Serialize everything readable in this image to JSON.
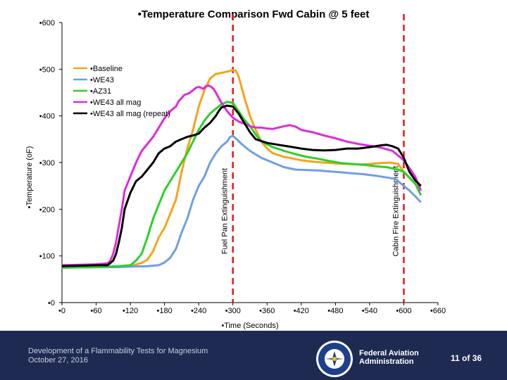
{
  "chart_data": {
    "type": "line",
    "title": "•Temperature Comparison Fwd Cabin @ 5 feet",
    "xlabel": "•Time (Seconds)",
    "ylabel": "•Temperature (oF)",
    "xlim": [
      0,
      660
    ],
    "ylim": [
      0,
      600
    ],
    "x_ticks": [
      0,
      60,
      120,
      180,
      240,
      300,
      360,
      420,
      480,
      540,
      600,
      660
    ],
    "x_tick_labels": [
      "•0",
      "•60",
      "•120",
      "•180",
      "•240",
      "•300",
      "•360",
      "•420",
      "•480",
      "•540",
      "•600",
      "•660"
    ],
    "y_ticks": [
      0,
      100,
      200,
      300,
      400,
      500,
      600
    ],
    "y_tick_labels": [
      "•0",
      "•100",
      "•200",
      "•300",
      "•400",
      "•500",
      "•600"
    ],
    "grid": false,
    "legend_position": "top-left",
    "series": [
      {
        "name": "•Baseline",
        "color": "#F7A21B",
        "points": [
          [
            0,
            75
          ],
          [
            60,
            76
          ],
          [
            100,
            78
          ],
          [
            125,
            80
          ],
          [
            140,
            85
          ],
          [
            150,
            92
          ],
          [
            160,
            110
          ],
          [
            170,
            140
          ],
          [
            180,
            160
          ],
          [
            190,
            190
          ],
          [
            200,
            220
          ],
          [
            210,
            280
          ],
          [
            220,
            330
          ],
          [
            230,
            370
          ],
          [
            240,
            420
          ],
          [
            250,
            455
          ],
          [
            260,
            480
          ],
          [
            270,
            490
          ],
          [
            280,
            492
          ],
          [
            290,
            495
          ],
          [
            300,
            498
          ],
          [
            305,
            497
          ],
          [
            310,
            485
          ],
          [
            320,
            440
          ],
          [
            330,
            400
          ],
          [
            340,
            370
          ],
          [
            350,
            345
          ],
          [
            360,
            330
          ],
          [
            370,
            320
          ],
          [
            380,
            316
          ],
          [
            390,
            312
          ],
          [
            400,
            310
          ],
          [
            420,
            305
          ],
          [
            440,
            302
          ],
          [
            460,
            300
          ],
          [
            480,
            298
          ],
          [
            500,
            297
          ],
          [
            520,
            296
          ],
          [
            540,
            297
          ],
          [
            560,
            299
          ],
          [
            575,
            300
          ],
          [
            590,
            297
          ],
          [
            600,
            280
          ],
          [
            620,
            255
          ],
          [
            630,
            240
          ]
        ]
      },
      {
        "name": "•WE43",
        "color": "#6F9FE3",
        "points": [
          [
            0,
            75
          ],
          [
            60,
            76
          ],
          [
            100,
            76
          ],
          [
            120,
            77
          ],
          [
            150,
            78
          ],
          [
            170,
            80
          ],
          [
            180,
            86
          ],
          [
            190,
            96
          ],
          [
            200,
            115
          ],
          [
            210,
            150
          ],
          [
            220,
            180
          ],
          [
            230,
            220
          ],
          [
            240,
            250
          ],
          [
            250,
            270
          ],
          [
            260,
            300
          ],
          [
            270,
            320
          ],
          [
            280,
            335
          ],
          [
            290,
            345
          ],
          [
            295,
            355
          ],
          [
            300,
            357
          ],
          [
            305,
            352
          ],
          [
            315,
            340
          ],
          [
            330,
            325
          ],
          [
            350,
            310
          ],
          [
            370,
            300
          ],
          [
            390,
            290
          ],
          [
            410,
            285
          ],
          [
            430,
            284
          ],
          [
            450,
            283
          ],
          [
            470,
            281
          ],
          [
            490,
            279
          ],
          [
            510,
            277
          ],
          [
            530,
            275
          ],
          [
            550,
            272
          ],
          [
            570,
            268
          ],
          [
            585,
            265
          ],
          [
            600,
            250
          ],
          [
            610,
            240
          ],
          [
            620,
            228
          ],
          [
            630,
            215
          ]
        ]
      },
      {
        "name": "•AZ31",
        "color": "#2BD02B",
        "points": [
          [
            0,
            75
          ],
          [
            60,
            76
          ],
          [
            100,
            78
          ],
          [
            120,
            80
          ],
          [
            130,
            90
          ],
          [
            140,
            105
          ],
          [
            150,
            140
          ],
          [
            160,
            180
          ],
          [
            170,
            210
          ],
          [
            180,
            240
          ],
          [
            190,
            260
          ],
          [
            200,
            280
          ],
          [
            210,
            300
          ],
          [
            220,
            320
          ],
          [
            230,
            345
          ],
          [
            240,
            370
          ],
          [
            250,
            390
          ],
          [
            260,
            405
          ],
          [
            270,
            415
          ],
          [
            280,
            425
          ],
          [
            290,
            430
          ],
          [
            300,
            428
          ],
          [
            310,
            410
          ],
          [
            320,
            392
          ],
          [
            330,
            378
          ],
          [
            340,
            360
          ],
          [
            350,
            345
          ],
          [
            370,
            333
          ],
          [
            390,
            325
          ],
          [
            410,
            318
          ],
          [
            430,
            312
          ],
          [
            450,
            308
          ],
          [
            470,
            303
          ],
          [
            490,
            299
          ],
          [
            510,
            297
          ],
          [
            530,
            295
          ],
          [
            550,
            292
          ],
          [
            570,
            290
          ],
          [
            590,
            285
          ],
          [
            600,
            280
          ],
          [
            620,
            255
          ],
          [
            630,
            230
          ]
        ]
      },
      {
        "name": "•WE43 all mag",
        "color": "#DE2BDC",
        "points": [
          [
            0,
            80
          ],
          [
            60,
            82
          ],
          [
            80,
            84
          ],
          [
            85,
            90
          ],
          [
            90,
            105
          ],
          [
            95,
            130
          ],
          [
            100,
            165
          ],
          [
            105,
            200
          ],
          [
            110,
            240
          ],
          [
            120,
            270
          ],
          [
            130,
            300
          ],
          [
            140,
            325
          ],
          [
            150,
            340
          ],
          [
            160,
            355
          ],
          [
            170,
            375
          ],
          [
            180,
            395
          ],
          [
            190,
            410
          ],
          [
            200,
            420
          ],
          [
            205,
            432
          ],
          [
            210,
            438
          ],
          [
            215,
            445
          ],
          [
            220,
            447
          ],
          [
            225,
            450
          ],
          [
            230,
            455
          ],
          [
            235,
            460
          ],
          [
            240,
            462
          ],
          [
            245,
            460
          ],
          [
            248,
            458
          ],
          [
            252,
            463
          ],
          [
            258,
            465
          ],
          [
            262,
            462
          ],
          [
            266,
            458
          ],
          [
            270,
            450
          ],
          [
            280,
            428
          ],
          [
            290,
            410
          ],
          [
            300,
            396
          ],
          [
            310,
            388
          ],
          [
            320,
            383
          ],
          [
            330,
            378
          ],
          [
            340,
            375
          ],
          [
            350,
            375
          ],
          [
            360,
            373
          ],
          [
            370,
            372
          ],
          [
            380,
            375
          ],
          [
            390,
            378
          ],
          [
            400,
            380
          ],
          [
            410,
            377
          ],
          [
            420,
            370
          ],
          [
            440,
            365
          ],
          [
            460,
            358
          ],
          [
            480,
            352
          ],
          [
            500,
            345
          ],
          [
            520,
            340
          ],
          [
            540,
            336
          ],
          [
            560,
            332
          ],
          [
            580,
            325
          ],
          [
            600,
            305
          ],
          [
            620,
            270
          ],
          [
            630,
            240
          ]
        ]
      },
      {
        "name": "•WE43 all mag (repeat)",
        "color": "#000000",
        "points": [
          [
            0,
            78
          ],
          [
            60,
            80
          ],
          [
            80,
            80
          ],
          [
            85,
            85
          ],
          [
            90,
            90
          ],
          [
            95,
            105
          ],
          [
            100,
            130
          ],
          [
            105,
            160
          ],
          [
            110,
            200
          ],
          [
            120,
            235
          ],
          [
            130,
            260
          ],
          [
            140,
            270
          ],
          [
            150,
            285
          ],
          [
            160,
            300
          ],
          [
            170,
            320
          ],
          [
            180,
            330
          ],
          [
            190,
            335
          ],
          [
            200,
            345
          ],
          [
            210,
            350
          ],
          [
            220,
            355
          ],
          [
            230,
            358
          ],
          [
            240,
            362
          ],
          [
            250,
            375
          ],
          [
            260,
            385
          ],
          [
            270,
            400
          ],
          [
            275,
            410
          ],
          [
            280,
            418
          ],
          [
            290,
            422
          ],
          [
            300,
            420
          ],
          [
            310,
            405
          ],
          [
            320,
            385
          ],
          [
            330,
            365
          ],
          [
            340,
            350
          ],
          [
            360,
            342
          ],
          [
            380,
            338
          ],
          [
            400,
            334
          ],
          [
            420,
            330
          ],
          [
            440,
            327
          ],
          [
            460,
            326
          ],
          [
            480,
            327
          ],
          [
            500,
            330
          ],
          [
            520,
            330
          ],
          [
            540,
            333
          ],
          [
            560,
            337
          ],
          [
            570,
            338
          ],
          [
            580,
            335
          ],
          [
            590,
            330
          ],
          [
            600,
            310
          ],
          [
            610,
            280
          ],
          [
            620,
            262
          ],
          [
            630,
            250
          ]
        ]
      }
    ],
    "annotations": [
      {
        "text": "Fuel Pan Extinguishment",
        "x": 300,
        "color": "#E11A1A"
      },
      {
        "text": "Cabin Fire Extinguishment",
        "x": 600,
        "color": "#E11A1A"
      }
    ]
  },
  "footer": {
    "line1": "Development of a Flammability Tests for Magnesium",
    "line2": "October 27, 2016",
    "org_line1": "Federal Aviation",
    "org_line2": "Administration",
    "page": "11 of 36",
    "seal_text_top": "FEDERAL AVIATION",
    "seal_text_bottom": "ADMINISTRATION"
  },
  "colors": {
    "footer_bg": "#1f2a52",
    "annotation": "#E11A1A"
  }
}
